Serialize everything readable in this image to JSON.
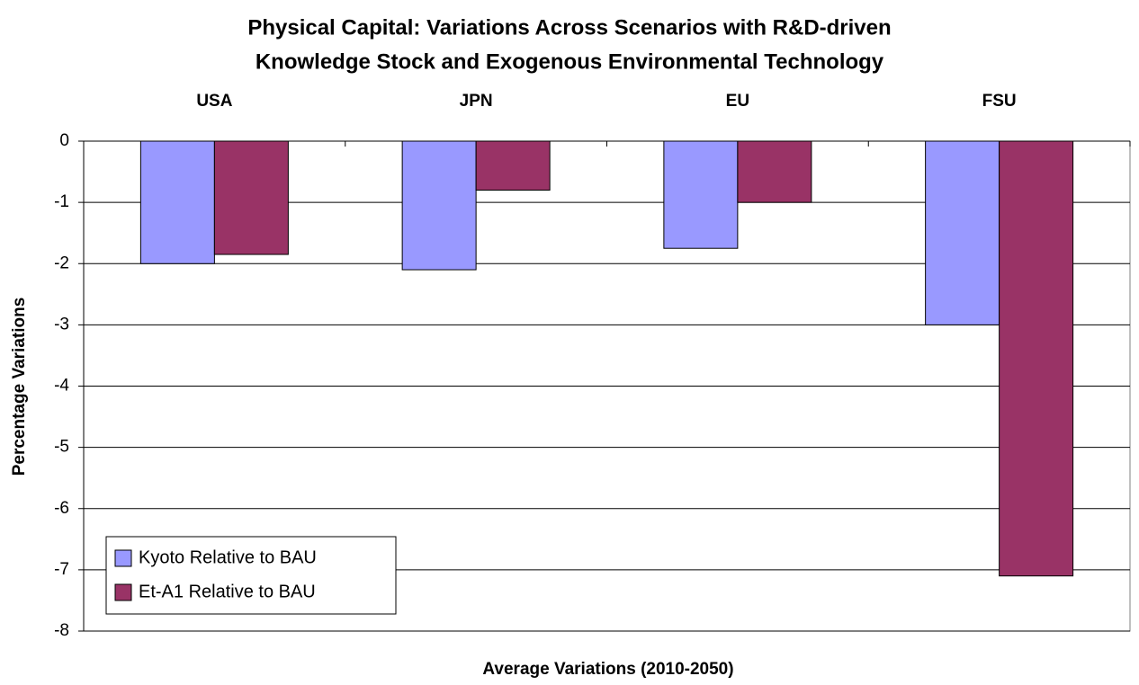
{
  "chart_data": {
    "type": "bar",
    "title": [
      "Physical Capital: Variations Across Scenarios with R&D-driven",
      "Knowledge Stock and Exogenous Environmental Technology"
    ],
    "x_label": "Average Variations (2010-2050)",
    "y_label": "Percentage Variations",
    "categories": [
      "USA",
      "JPN",
      "EU",
      "FSU"
    ],
    "series": [
      {
        "name": "Kyoto Relative to BAU",
        "color": "#9999ff",
        "values": [
          -2.0,
          -2.1,
          -1.75,
          -3.0
        ]
      },
      {
        "name": "Et-A1 Relative to BAU",
        "color": "#993366",
        "values": [
          -1.85,
          -0.8,
          -1.0,
          -7.1
        ]
      }
    ],
    "ylim": [
      -8,
      0
    ],
    "yticks": [
      -8,
      -7,
      -6,
      -5,
      -4,
      -3,
      -2,
      -1,
      0
    ],
    "grid": true,
    "legend": "lower left"
  }
}
